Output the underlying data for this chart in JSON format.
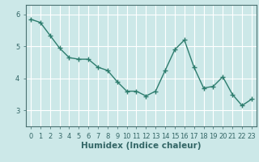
{
  "x": [
    0,
    1,
    2,
    3,
    4,
    5,
    6,
    7,
    8,
    9,
    10,
    11,
    12,
    13,
    14,
    15,
    16,
    17,
    18,
    19,
    20,
    21,
    22,
    23
  ],
  "y": [
    5.85,
    5.75,
    5.35,
    4.95,
    4.65,
    4.6,
    4.6,
    4.35,
    4.25,
    3.9,
    3.6,
    3.6,
    3.45,
    3.6,
    4.25,
    4.9,
    5.2,
    4.35,
    3.7,
    3.75,
    4.05,
    3.5,
    3.15,
    3.35
  ],
  "line_color": "#2e7d6e",
  "marker": "+",
  "bg_color": "#cce8e8",
  "grid_color": "#ffffff",
  "axis_color": "#4a7070",
  "tick_color": "#336666",
  "xlabel": "Humidex (Indice chaleur)",
  "xlabel_fontsize": 7.5,
  "xlim": [
    -0.5,
    23.5
  ],
  "ylim": [
    2.5,
    6.3
  ],
  "yticks": [
    3,
    4,
    5,
    6
  ],
  "xticks": [
    0,
    1,
    2,
    3,
    4,
    5,
    6,
    7,
    8,
    9,
    10,
    11,
    12,
    13,
    14,
    15,
    16,
    17,
    18,
    19,
    20,
    21,
    22,
    23
  ],
  "tick_fontsize": 6,
  "line_width": 1.0,
  "marker_size": 4,
  "marker_edge_width": 1.0
}
